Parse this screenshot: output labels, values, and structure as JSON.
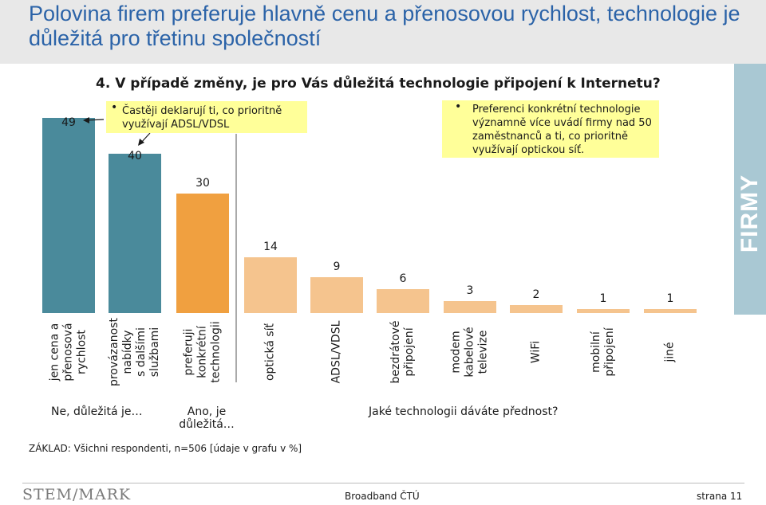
{
  "title": "Polovina firem preferuje hlavně cenu a přenosovou rychlost, technologie je důležitá pro třetinu společností",
  "question": "4. V případě změny, je pro Vás důležitá technologie připojení k Internetu?",
  "side_label": "FIRMY",
  "notes": {
    "left": "Častěji deklarují ti, co prioritně využívají ADSL/VDSL",
    "right": "Preferenci konkrétní technologie významně více uvádí firmy nad 50 zaměstnanců a ti, co prioritně využívají optickou síť."
  },
  "group_labels": {
    "no": "Ne, důležitá je…",
    "yes": "Ano, je důležitá…",
    "which": "Jaké technologii dáváte přednost?"
  },
  "base_text": "ZÁKLAD: Všichni respondenti, n=506 [údaje v grafu v %]",
  "footer": {
    "logo": "STEM/MARK",
    "center": "Broadband ČTÚ",
    "page": "strana 11"
  },
  "colors": {
    "title": "#2b63a8",
    "teal": "#4a8a9b",
    "orange": "#f0a040",
    "light_orange": "#f5c48e",
    "note_bg": "#ffff99",
    "side_band": "#a9c8d3"
  },
  "chart_data": {
    "type": "bar",
    "categories": [
      "jen cena a přenosová rychlost",
      "provázanost nabídky s dalšími službami",
      "preferuji konkrétní technologii",
      "optická síť",
      "ADSL/VDSL",
      "bezdrátové připojení",
      "modem kabelové televize",
      "WiFi",
      "mobilní připojení",
      "jiné"
    ],
    "category_lines": [
      [
        "jen cena a",
        "přenosová",
        "rychlost"
      ],
      [
        "provázanost",
        "nabídky",
        "s dalšími",
        "službami"
      ],
      [
        "preferuji",
        "konkrétní",
        "technologii"
      ],
      [
        "optická síť"
      ],
      [
        "ADSL/VDSL"
      ],
      [
        "bezdrátové",
        "připojení"
      ],
      [
        "modem",
        "kabelové",
        "televize"
      ],
      [
        "WiFi"
      ],
      [
        "mobilní",
        "připojení"
      ],
      [
        "jiné"
      ]
    ],
    "values": [
      49,
      40,
      30,
      14,
      9,
      6,
      3,
      2,
      1,
      1
    ],
    "value_labels": [
      "49",
      "40",
      "30",
      "14",
      "9",
      "6",
      "3",
      "2",
      "1",
      "1"
    ],
    "bar_colors": [
      "#4a8a9b",
      "#4a8a9b",
      "#f0a040",
      "#f5c48e",
      "#f5c48e",
      "#f5c48e",
      "#f5c48e",
      "#f5c48e",
      "#f5c48e",
      "#f5c48e"
    ],
    "ylim": [
      0,
      50
    ],
    "grid": false
  }
}
